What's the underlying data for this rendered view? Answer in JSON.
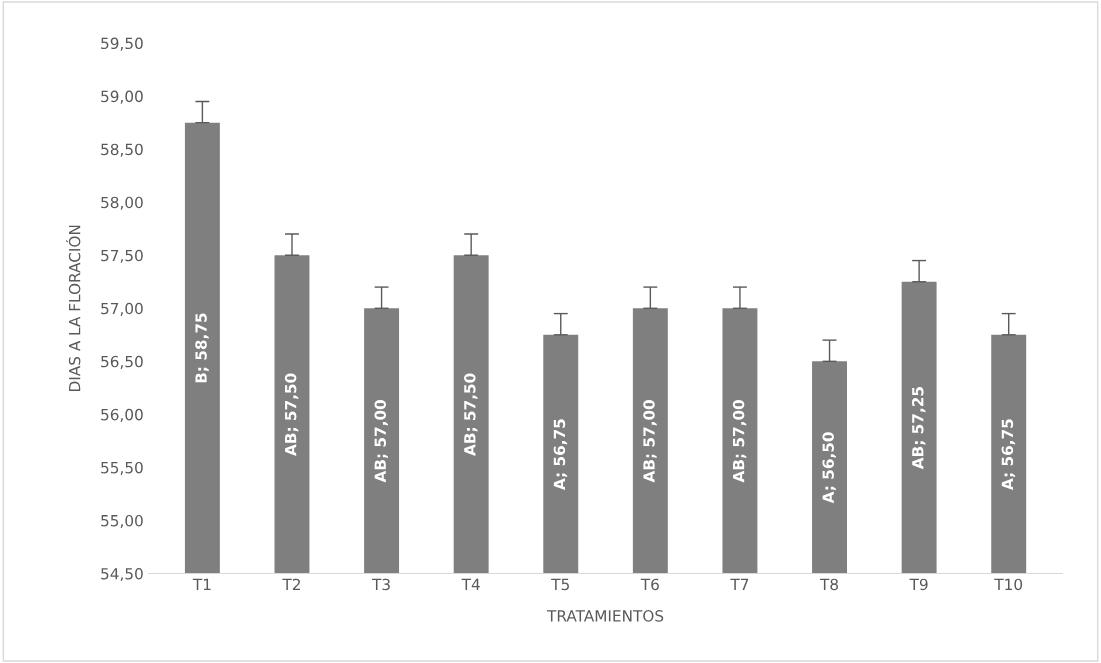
{
  "chart_data": {
    "type": "bar",
    "xlabel": "TRATAMIENTOS",
    "ylabel": "DIAS A LA FLORACIÓN",
    "categories": [
      "T1",
      "T2",
      "T3",
      "T4",
      "T5",
      "T6",
      "T7",
      "T8",
      "T9",
      "T10"
    ],
    "values": [
      58.75,
      57.5,
      57.0,
      57.5,
      56.75,
      57.0,
      57.0,
      56.5,
      57.25,
      56.75
    ],
    "value_labels": [
      "B; 58,75",
      "AB; 57,50",
      "AB; 57,00",
      "AB; 57,50",
      "A; 56,75",
      "AB; 57,00",
      "AB; 57,00",
      "A; 56,50",
      "AB; 57,25",
      "A; 56,75"
    ],
    "errors": [
      [
        58.75,
        58.95
      ],
      [
        57.5,
        57.7
      ],
      [
        57.0,
        57.2
      ],
      [
        57.5,
        57.7
      ],
      [
        56.75,
        56.95
      ],
      [
        57.0,
        57.2
      ],
      [
        57.0,
        57.2
      ],
      [
        56.5,
        56.7
      ],
      [
        57.25,
        57.45
      ],
      [
        56.75,
        56.95
      ]
    ],
    "color": "#7f7f7f",
    "ylim": [
      54.5,
      59.5
    ],
    "yticks": [
      {
        "value": 54.5,
        "label": "54,50"
      },
      {
        "value": 55.0,
        "label": "55,00"
      },
      {
        "value": 55.5,
        "label": "55,50"
      },
      {
        "value": 56.0,
        "label": "56,00"
      },
      {
        "value": 56.5,
        "label": "56,50"
      },
      {
        "value": 57.0,
        "label": "57,00"
      },
      {
        "value": 57.5,
        "label": "57,50"
      },
      {
        "value": 58.0,
        "label": "58,00"
      },
      {
        "value": 58.5,
        "label": "58,50"
      },
      {
        "value": 59.0,
        "label": "59,00"
      },
      {
        "value": 59.5,
        "label": "59,50"
      }
    ],
    "grid": false
  }
}
